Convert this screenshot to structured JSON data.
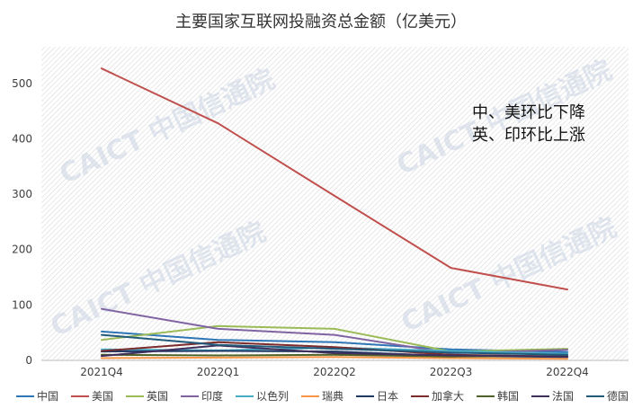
{
  "chart_data": {
    "type": "line",
    "title": "主要国家互联网投融资总金额（亿美元）",
    "xlabel": "",
    "ylabel": "",
    "categories": [
      "2021Q4",
      "2022Q1",
      "2022Q2",
      "2022Q3",
      "2022Q4"
    ],
    "ylim": [
      0,
      550
    ],
    "yticks": [
      0,
      100,
      200,
      300,
      400,
      500
    ],
    "grid": false,
    "legend_position": "bottom",
    "annotations": [
      "中、美环比下降",
      "英、印环比上涨"
    ],
    "watermark": "CAICT 中国信通院",
    "series": [
      {
        "name": "中国",
        "color": "#2e75b6",
        "values": [
          52,
          37,
          33,
          20,
          15
        ]
      },
      {
        "name": "美国",
        "color": "#c0504d",
        "values": [
          527,
          428,
          297,
          167,
          128
        ]
      },
      {
        "name": "英国",
        "color": "#9bbb59",
        "values": [
          37,
          62,
          57,
          16,
          21
        ]
      },
      {
        "name": "印度",
        "color": "#8064a2",
        "values": [
          93,
          57,
          46,
          13,
          19
        ]
      },
      {
        "name": "以色列",
        "color": "#4bacc6",
        "values": [
          20,
          18,
          23,
          17,
          12
        ]
      },
      {
        "name": "瑞典",
        "color": "#f79646",
        "values": [
          4,
          5,
          6,
          4,
          3
        ]
      },
      {
        "name": "日本",
        "color": "#1f3864",
        "values": [
          16,
          17,
          16,
          8,
          6
        ]
      },
      {
        "name": "加拿大",
        "color": "#7b2c2c",
        "values": [
          17,
          33,
          24,
          10,
          7
        ]
      },
      {
        "name": "韩国",
        "color": "#4f6228",
        "values": [
          10,
          9,
          10,
          7,
          8
        ]
      },
      {
        "name": "法国",
        "color": "#3f2f5c",
        "values": [
          8,
          27,
          13,
          9,
          7
        ]
      },
      {
        "name": "德国",
        "color": "#215a7a",
        "values": [
          46,
          28,
          21,
          14,
          10
        ]
      }
    ]
  }
}
